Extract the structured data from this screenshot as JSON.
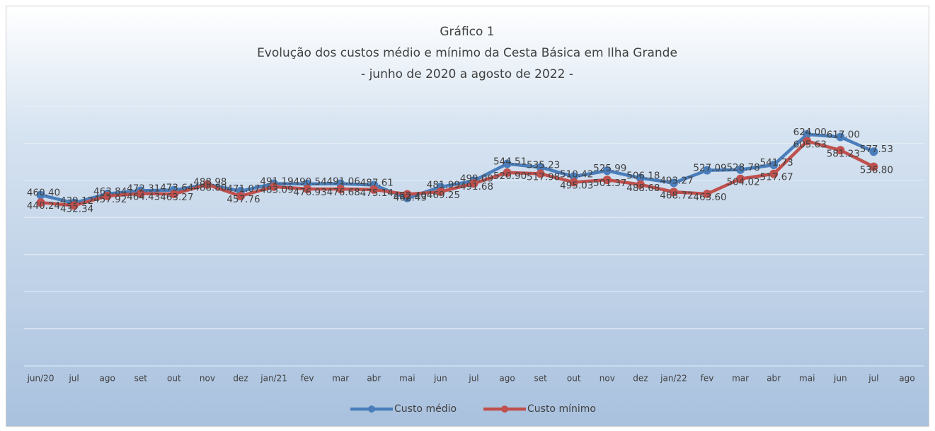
{
  "chart_data": {
    "type": "line",
    "title": "Gráfico 1",
    "subtitle": "Evolução dos custos médio e mínimo da Cesta Básica em Ilha Grande",
    "subtitle2": "- junho de 2020 a agosto de 2022 -",
    "categories": [
      "jun/20",
      "jul",
      "ago",
      "set",
      "out",
      "nov",
      "dez",
      "jan/21",
      "fev",
      "mar",
      "abr",
      "mai",
      "jun",
      "jul",
      "ago",
      "set",
      "out",
      "nov",
      "dez",
      "jan/22",
      "fev",
      "mar",
      "abr",
      "mai",
      "jun",
      "jul",
      "ago"
    ],
    "ylim": [
      0,
      700
    ],
    "yticks": [
      0,
      100,
      200,
      300,
      400,
      500,
      600,
      700
    ],
    "grid": true,
    "legend": "bottom",
    "series": [
      {
        "name": "Custo médio",
        "color": "#4a7ebb",
        "values": [
          460.4,
          439.12,
          463.84,
          472.31,
          473.64,
          488.98,
          471.07,
          491.19,
          490.54,
          491.06,
          487.61,
          452.4,
          481.99,
          499.09,
          544.51,
          535.23,
          510.42,
          525.99,
          506.18,
          493.27,
          527.09,
          528.78,
          541.73,
          624.0,
          617.0,
          577.53,
          null
        ],
        "value_labels": [
          "460.40",
          "439.12",
          "463.84",
          "472.31",
          "473.64",
          "488.98",
          "471.07",
          "491.19",
          "490.54",
          "491.06",
          "487.61",
          "452.40",
          "481.99",
          "499.09",
          "544.51",
          "535.23",
          "510.42",
          "525.99",
          "506.18",
          "493.27",
          "527.09",
          "528.78",
          "541.73",
          "624.00",
          "617.00",
          "577.53",
          null
        ]
      },
      {
        "name": "Custo mínimo",
        "color": "#c0504d",
        "values": [
          440.24,
          432.34,
          457.92,
          464.43,
          463.27,
          488.8,
          457.76,
          483.09,
          476.93,
          476.68,
          475.14,
          462.43,
          469.25,
          491.68,
          520.9,
          517.98,
          495.03,
          501.37,
          488.68,
          468.72,
          463.6,
          504.02,
          517.67,
          605.63,
          581.23,
          536.8,
          null
        ],
        "value_labels": [
          "440.24",
          "432.34",
          "457.92",
          "464.43",
          "463.27",
          "488.80",
          "457.76",
          "483.09",
          "476.93",
          "476.68",
          "475.14",
          "462.43",
          "469.25",
          "491.68",
          "520.90",
          "517.98",
          "495.03",
          "501.37",
          "488.68",
          "468.72",
          "463.60",
          "504.02",
          "517.67",
          "605.63",
          "581.23",
          "536.80",
          null
        ]
      }
    ]
  }
}
